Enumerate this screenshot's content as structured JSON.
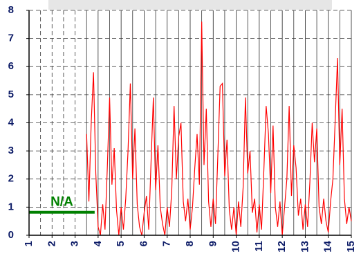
{
  "chart_data": {
    "type": "line",
    "annotation": "N/A",
    "xlim": [
      1,
      15
    ],
    "ylim": [
      0,
      8
    ],
    "xticks": [
      1,
      2,
      3,
      4,
      5,
      6,
      7,
      8,
      9,
      10,
      11,
      12,
      13,
      14,
      15
    ],
    "yticks": [
      0,
      1,
      2,
      3,
      4,
      5,
      6,
      7,
      8
    ],
    "grid": true,
    "series": [
      {
        "color": "#ff0000",
        "x": [
          3.5,
          3.6,
          3.7,
          3.8,
          3.9,
          4.0,
          4.1,
          4.2,
          4.3,
          4.4,
          4.5,
          4.6,
          4.7,
          4.8,
          4.9,
          5.0,
          5.1,
          5.2,
          5.3,
          5.4,
          5.5,
          5.6,
          5.7,
          5.8,
          5.9,
          6.0,
          6.1,
          6.2,
          6.3,
          6.4,
          6.5,
          6.6,
          6.7,
          6.8,
          6.9,
          7.0,
          7.1,
          7.2,
          7.3,
          7.4,
          7.5,
          7.6,
          7.7,
          7.8,
          7.9,
          8.0,
          8.1,
          8.2,
          8.3,
          8.4,
          8.5,
          8.6,
          8.7,
          8.8,
          8.9,
          9.0,
          9.1,
          9.2,
          9.3,
          9.4,
          9.5,
          9.6,
          9.7,
          9.8,
          9.9,
          10.0,
          10.1,
          10.2,
          10.3,
          10.4,
          10.5,
          10.6,
          10.7,
          10.8,
          10.9,
          11.0,
          11.1,
          11.2,
          11.3,
          11.4,
          11.5,
          11.6,
          11.7,
          11.8,
          11.9,
          12.0,
          12.1,
          12.2,
          12.3,
          12.4,
          12.5,
          12.6,
          12.7,
          12.8,
          12.9,
          13.0,
          13.1,
          13.2,
          13.3,
          13.4,
          13.5,
          13.6,
          13.7,
          13.8,
          13.9,
          14.0,
          14.1,
          14.2,
          14.3,
          14.4,
          14.5,
          14.6,
          14.7,
          14.8,
          14.9,
          15.0
        ],
        "values": [
          3.6,
          1.2,
          4.0,
          5.8,
          2.2,
          0.3,
          0,
          1.1,
          0.2,
          2.4,
          4.9,
          1.8,
          3.1,
          0.9,
          0,
          1.0,
          0.2,
          1.3,
          3.0,
          5.4,
          2.0,
          3.8,
          1.1,
          0.3,
          0,
          0.8,
          1.4,
          0.2,
          2.6,
          4.9,
          1.6,
          3.2,
          1.0,
          0.4,
          0,
          1.0,
          0.3,
          1.6,
          4.6,
          2.0,
          3.5,
          4.0,
          1.2,
          0.5,
          1.3,
          0.2,
          1.0,
          2.4,
          3.6,
          1.8,
          7.6,
          2.5,
          4.5,
          1.2,
          0.3,
          1.3,
          0.4,
          2.8,
          5.3,
          5.4,
          2.1,
          3.4,
          0.9,
          0.2,
          1.0,
          0,
          1.2,
          0.3,
          1.7,
          4.9,
          2.2,
          3.0,
          0.8,
          1.3,
          0.1,
          1.1,
          0.2,
          2.3,
          4.6,
          3.6,
          1.5,
          3.9,
          1.0,
          0.3,
          1.2,
          0,
          1.0,
          2.0,
          4.6,
          1.4,
          3.2,
          2.4,
          0.7,
          1.3,
          0.2,
          1.1,
          0.3,
          1.9,
          4.0,
          2.6,
          3.8,
          1.0,
          0.4,
          1.3,
          0.5,
          0.1,
          1.2,
          2.0,
          4.1,
          6.3,
          2.5,
          4.5,
          1.3,
          0.4,
          1.0,
          0.5
        ]
      },
      {
        "color": "#008000",
        "x": [
          1,
          3.85
        ],
        "values": [
          0.82,
          0.82
        ]
      }
    ]
  }
}
